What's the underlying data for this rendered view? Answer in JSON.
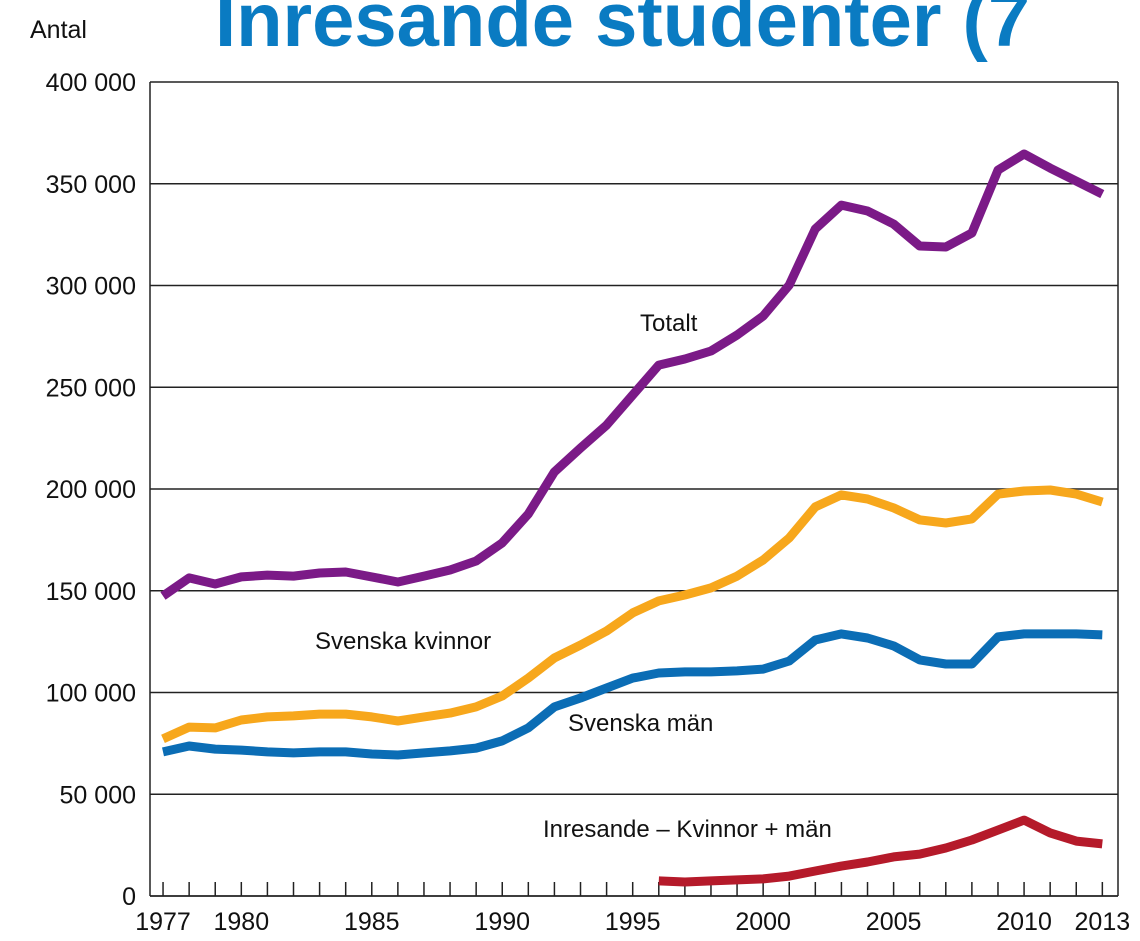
{
  "chart_data": {
    "type": "line",
    "title": "Inresande studenter (7",
    "y_label": "Antal",
    "x": [
      1977,
      1978,
      1979,
      1980,
      1981,
      1982,
      1983,
      1984,
      1985,
      1986,
      1987,
      1988,
      1989,
      1990,
      1991,
      1992,
      1993,
      1994,
      1995,
      1996,
      1997,
      1998,
      1999,
      2000,
      2001,
      2002,
      2003,
      2004,
      2005,
      2006,
      2007,
      2008,
      2009,
      2010,
      2011,
      2012,
      2013
    ],
    "series": [
      {
        "name": "Totalt",
        "color": "#7b1a87",
        "values": [
          147400,
          156300,
          153300,
          156800,
          157700,
          157200,
          158700,
          159200,
          156800,
          154300,
          157200,
          160200,
          164600,
          173500,
          187700,
          208400,
          220100,
          231400,
          246200,
          260900,
          263900,
          267800,
          275700,
          285000,
          300200,
          327800,
          339500,
          336600,
          330200,
          319400,
          318900,
          325800,
          356700,
          364600,
          357700,
          351300,
          344900
        ]
      },
      {
        "name": "Svenska kvinnor",
        "color": "#f7a71c",
        "values": [
          77200,
          83000,
          82600,
          86500,
          88000,
          88500,
          89400,
          89400,
          88000,
          86000,
          88000,
          89900,
          92900,
          98300,
          107100,
          117000,
          123300,
          130200,
          139100,
          145000,
          147900,
          151400,
          157200,
          165100,
          175900,
          191200,
          197100,
          195100,
          190700,
          184800,
          183300,
          185300,
          197500,
          199000,
          199500,
          197500,
          193600
        ]
      },
      {
        "name": "Svenska män",
        "color": "#0b6db5",
        "values": [
          70800,
          73700,
          72200,
          71700,
          70800,
          70300,
          70800,
          70800,
          69800,
          69300,
          70300,
          71300,
          72700,
          76200,
          82600,
          92900,
          97300,
          102200,
          107100,
          109600,
          110100,
          110100,
          110600,
          111500,
          115500,
          125800,
          128800,
          126800,
          122900,
          116000,
          114000,
          114000,
          127300,
          128800,
          128800,
          128800,
          128300
        ]
      },
      {
        "name": "Inresande – Kvinnor + män",
        "color": "#b51a2a",
        "values": [
          null,
          null,
          null,
          null,
          null,
          null,
          null,
          null,
          null,
          null,
          null,
          null,
          null,
          null,
          null,
          null,
          null,
          null,
          null,
          7400,
          6900,
          7400,
          7900,
          8400,
          9800,
          12300,
          14700,
          16700,
          19200,
          20600,
          23600,
          27500,
          32400,
          37300,
          31000,
          27000,
          25600
        ]
      }
    ],
    "xlim": [
      1976.5,
      2013.6
    ],
    "xticks": [
      1977,
      1980,
      1985,
      1990,
      1995,
      2000,
      2005,
      2010,
      2013
    ],
    "ylim": [
      0,
      400000
    ],
    "yticks": [
      0,
      {
        "value": 50000,
        "label": "50 000"
      },
      {
        "value": 100000,
        "label": "100 000"
      },
      {
        "value": 150000,
        "label": "150 000"
      },
      {
        "value": 200000,
        "label": "200 000"
      },
      {
        "value": 250000,
        "label": "250 000"
      },
      {
        "value": 300000,
        "label": "300 000"
      },
      {
        "value": 350000,
        "label": "350 000"
      },
      {
        "value": 400000,
        "label": "400 000"
      }
    ],
    "grid": true
  }
}
